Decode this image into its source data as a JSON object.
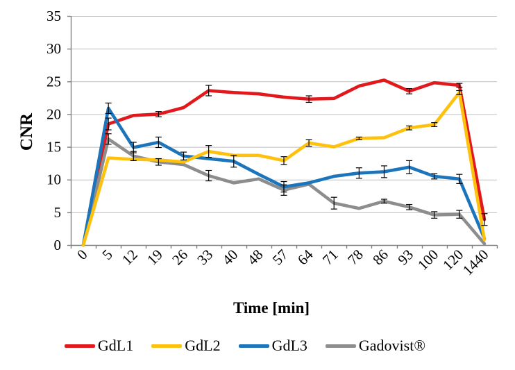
{
  "chart_data": {
    "type": "line",
    "title": "",
    "xlabel": "Time [min]",
    "ylabel": "CNR",
    "ylim": [
      0,
      35
    ],
    "yticks": [
      0,
      5,
      10,
      15,
      20,
      25,
      30,
      35
    ],
    "grid": "horizontal",
    "legend_position": "bottom",
    "x_tick_rotation": -45,
    "categories": [
      "0",
      "5",
      "12",
      "19",
      "26",
      "33",
      "40",
      "48",
      "57",
      "64",
      "71",
      "78",
      "86",
      "93",
      "100",
      "120",
      "1440"
    ],
    "series": [
      {
        "name": "GdL1",
        "color": "#E2191C",
        "values": [
          0,
          18.5,
          19.8,
          20.0,
          21.0,
          23.6,
          23.3,
          23.1,
          22.6,
          22.3,
          22.4,
          24.3,
          25.2,
          23.5,
          24.8,
          24.4,
          3.9
        ],
        "errors": [
          0,
          0.9,
          0,
          0.4,
          0,
          0.8,
          0,
          0,
          0,
          0.5,
          0,
          0,
          0,
          0.4,
          0,
          0.3,
          0.9
        ]
      },
      {
        "name": "GdL2",
        "color": "#FEC10D",
        "values": [
          0,
          13.3,
          13.1,
          13.0,
          12.7,
          14.3,
          13.7,
          13.7,
          12.9,
          15.6,
          15.0,
          16.3,
          16.4,
          17.9,
          18.4,
          23.3,
          0.8
        ],
        "errors": [
          0,
          0,
          0,
          0,
          0,
          0.9,
          0,
          0,
          0.6,
          0.5,
          0,
          0.2,
          0,
          0.3,
          0.3,
          0.3,
          0
        ]
      },
      {
        "name": "GdL3",
        "color": "#1C75BB",
        "values": [
          0,
          20.9,
          14.9,
          15.7,
          13.6,
          13.2,
          12.8,
          10.8,
          8.9,
          9.5,
          10.5,
          11.0,
          11.2,
          11.9,
          10.5,
          10.1,
          1.0
        ],
        "errors": [
          0,
          0.8,
          0.8,
          0.8,
          0.6,
          0,
          0.9,
          0,
          0.8,
          0,
          0,
          0.8,
          0.9,
          1.0,
          0.4,
          0.7,
          0
        ]
      },
      {
        "name": "Gadovist®",
        "color": "#8D8D8D",
        "values": [
          0,
          16.2,
          13.6,
          12.7,
          12.3,
          10.6,
          9.5,
          10.1,
          8.4,
          9.3,
          6.4,
          5.6,
          6.7,
          5.8,
          4.6,
          4.7,
          0.2
        ],
        "errors": [
          0,
          0.8,
          0.7,
          0.5,
          0,
          0.8,
          0,
          0,
          0.8,
          0,
          0.9,
          0,
          0.3,
          0.4,
          0.5,
          0.6,
          0
        ]
      }
    ],
    "draw_order": [
      0,
      3,
      2,
      1
    ]
  },
  "colors": {
    "background": "#FFFFFF",
    "gridline": "#BFBFBF",
    "axis": "#808080",
    "error_bar": "#000000",
    "text": "#000000"
  }
}
